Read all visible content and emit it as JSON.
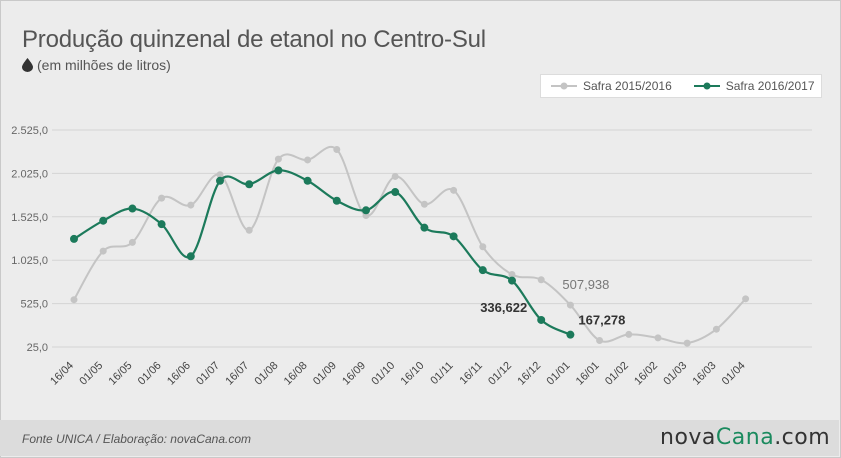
{
  "header": {
    "title": "Produção quinzenal de etanol no Centro-Sul",
    "subtitle": "(em milhões de litros)"
  },
  "footer": {
    "source": "Fonte UNICA / Elaboração: novaCana.com",
    "brand_prefix": "nova",
    "brand_name": "Cana",
    "brand_suffix": ".com"
  },
  "icons": {
    "subtitle_icon": "drop-icon"
  },
  "colors": {
    "series_2015": "#c4c4c4",
    "series_2016": "#1c7a5b",
    "axis_text": "#666666",
    "grid": "#d4d4d4",
    "brand_accent": "#1a8a5e"
  },
  "chart_data": {
    "type": "line",
    "categories": [
      "16/04",
      "01/05",
      "16/05",
      "01/06",
      "16/06",
      "01/07",
      "16/07",
      "01/08",
      "16/08",
      "01/09",
      "16/09",
      "01/10",
      "16/10",
      "01/11",
      "16/11",
      "01/12",
      "16/12",
      "01/01",
      "16/01",
      "01/02",
      "16/02",
      "01/03",
      "16/03",
      "01/04"
    ],
    "yticks": [
      "2.525,0",
      "2.025,0",
      "1.525,0",
      "1.025,0",
      "525,0",
      "25,0"
    ],
    "ylim": [
      25,
      2525
    ],
    "grid": true,
    "legend_position": "top-right",
    "series": [
      {
        "name": "Safra 2015/2016",
        "values": [
          570,
          1130,
          1230,
          1740,
          1660,
          2010,
          1370,
          2190,
          2180,
          2300,
          1540,
          1990,
          1670,
          1830,
          1180,
          860,
          800,
          507.938,
          100,
          170,
          130,
          70,
          230,
          580
        ]
      },
      {
        "name": "Safra 2016/2017",
        "values": [
          1270,
          1480,
          1620,
          1440,
          1070,
          1940,
          1900,
          2060,
          1940,
          1710,
          1600,
          1810,
          1400,
          1300,
          910,
          790,
          336.622,
          167.278,
          null,
          null,
          null,
          null,
          null,
          null
        ]
      }
    ],
    "annotations": [
      {
        "series": 0,
        "index": 17,
        "label": "507,938"
      },
      {
        "series": 1,
        "index": 16,
        "label": "336,622"
      },
      {
        "series": 1,
        "index": 17,
        "label": "167,278"
      }
    ]
  }
}
